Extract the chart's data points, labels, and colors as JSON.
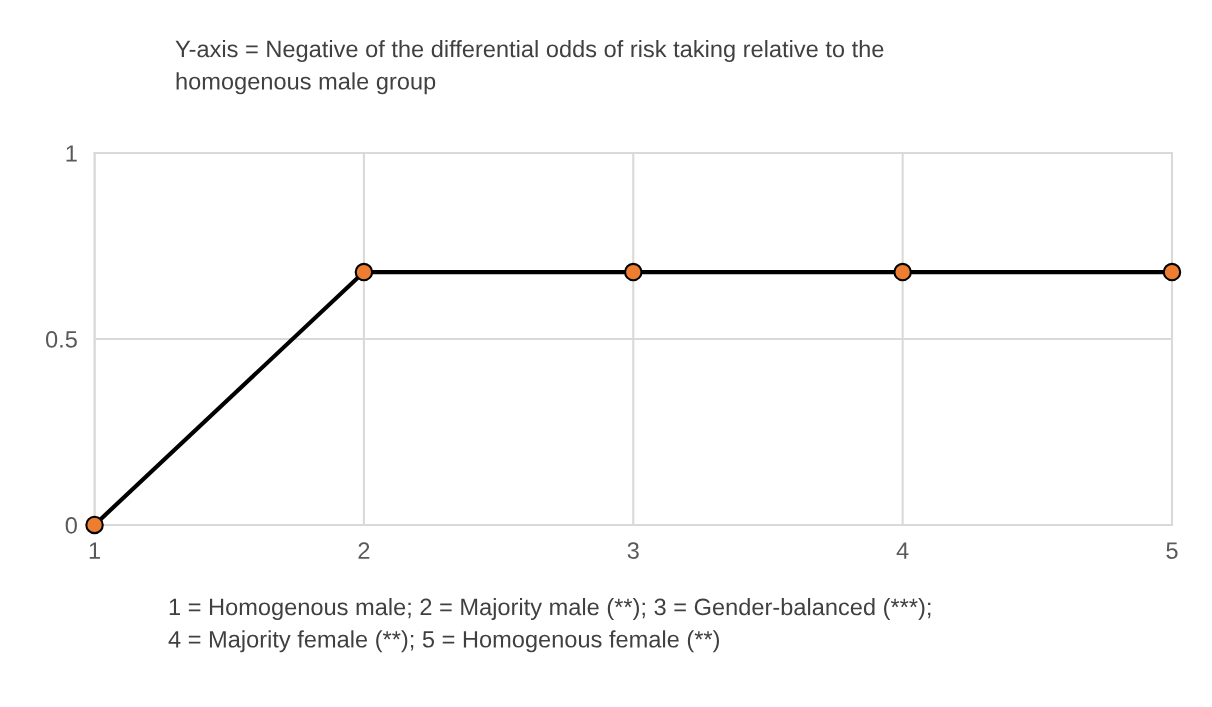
{
  "chart_data": {
    "type": "line",
    "title": "Y-axis = Negative of the differential odds of risk taking relative to the\nhomogenous male group",
    "xlabel": "1 = Homogenous male; 2 = Majority male (**); 3 = Gender-balanced (***);\n4 = Majority female (**); 5 = Homogenous female (**)",
    "x": [
      1,
      2,
      3,
      4,
      5
    ],
    "series": [
      {
        "color": "#000000",
        "colors": [
          "#ed7d31",
          "#ed7d31",
          "#ed7d31",
          "#ed7d31",
          "#ed7d31"
        ],
        "values": [
          0,
          0.68,
          0.68,
          0.68,
          0.68
        ]
      }
    ],
    "xlim": [
      1,
      5
    ],
    "xticks": [
      1,
      2,
      3,
      4,
      5
    ],
    "ylim": [
      0,
      1
    ],
    "yticks": [
      0,
      0.5,
      1
    ],
    "grid": true,
    "marker": "circle",
    "line_style": "solid"
  }
}
